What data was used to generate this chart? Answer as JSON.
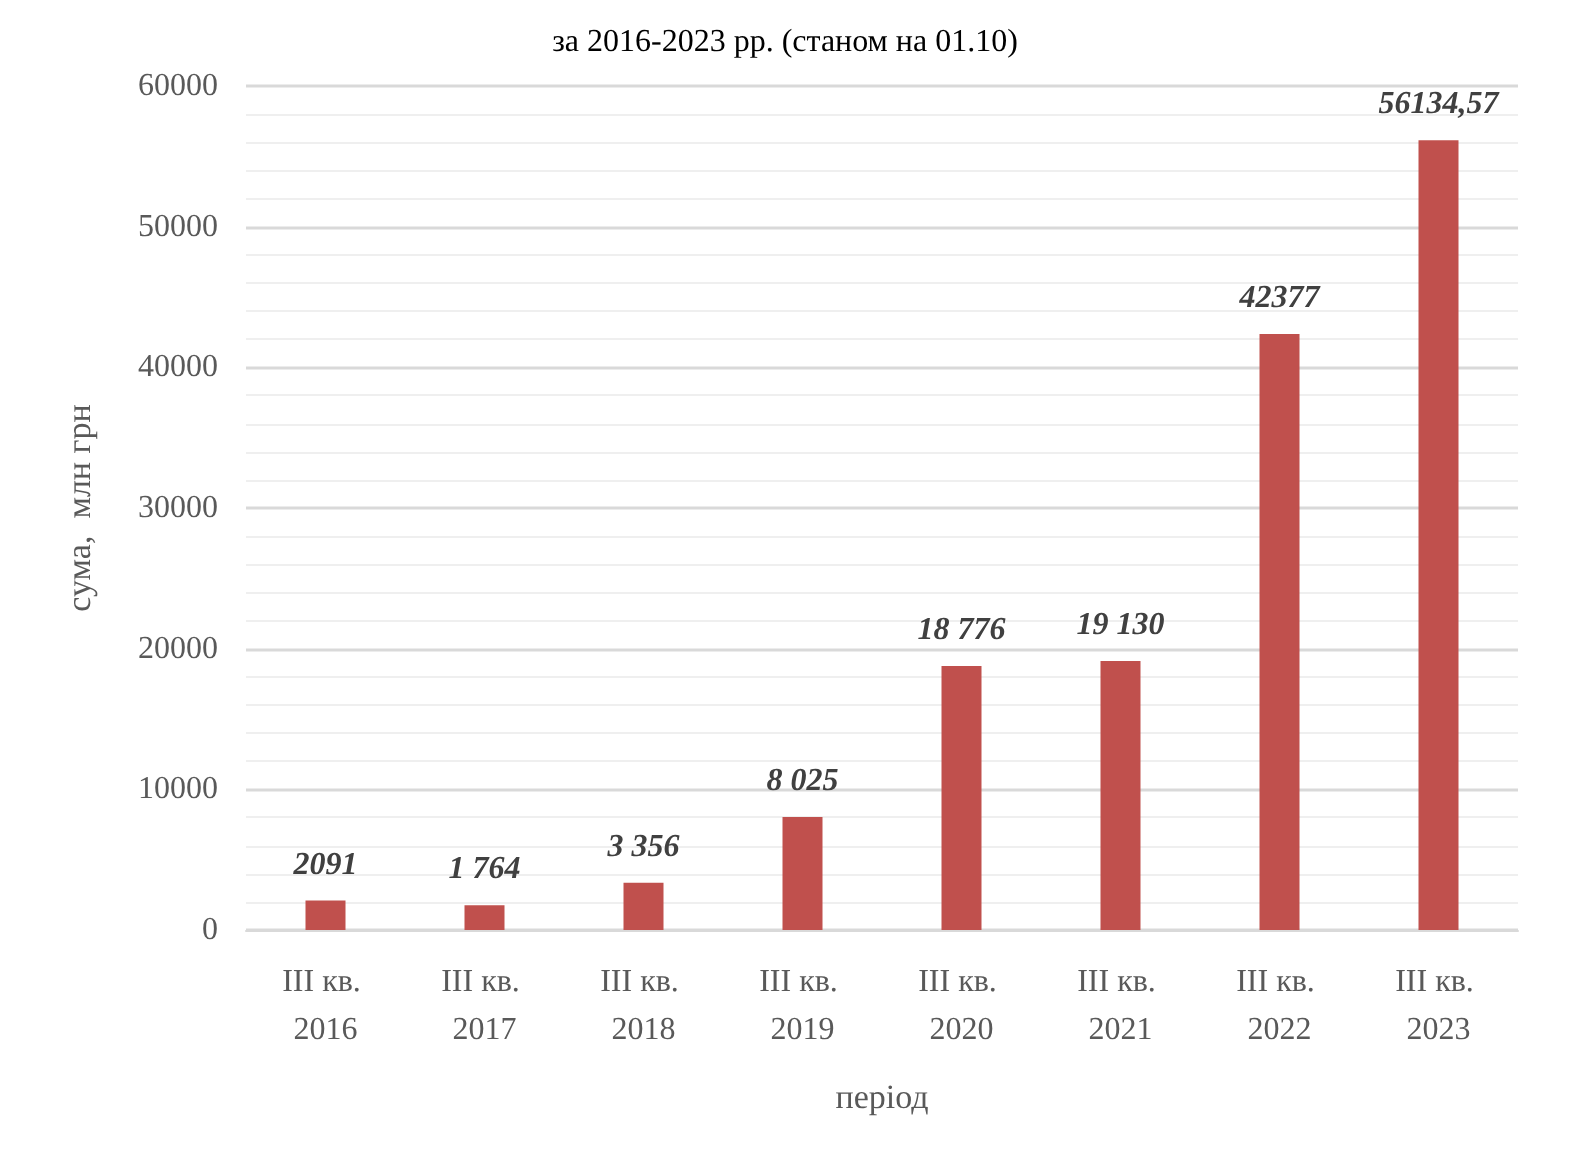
{
  "chart_data": {
    "type": "bar",
    "title": "за 2016-2023 рр. (станом на 01.10)",
    "xlabel": "період",
    "ylabel": "сума,  млн грн",
    "categories": [
      "III кв. 2016",
      "III кв. 2017",
      "III кв. 2018",
      "III кв. 2019",
      "III кв. 2020",
      "III кв. 2021",
      "III кв. 2022",
      "III кв. 2023"
    ],
    "values": [
      2091,
      1764,
      3356,
      8025,
      18776,
      19130,
      42377,
      56134.57
    ],
    "value_labels": [
      "2091",
      "1 764",
      "3 356",
      "8 025",
      "18 776",
      "19 130",
      "42377",
      "56134,57"
    ],
    "color": "#c0504d",
    "ylim": [
      0,
      60000
    ],
    "yticks": [
      0,
      10000,
      20000,
      30000,
      40000,
      50000,
      60000
    ],
    "grid": true
  }
}
